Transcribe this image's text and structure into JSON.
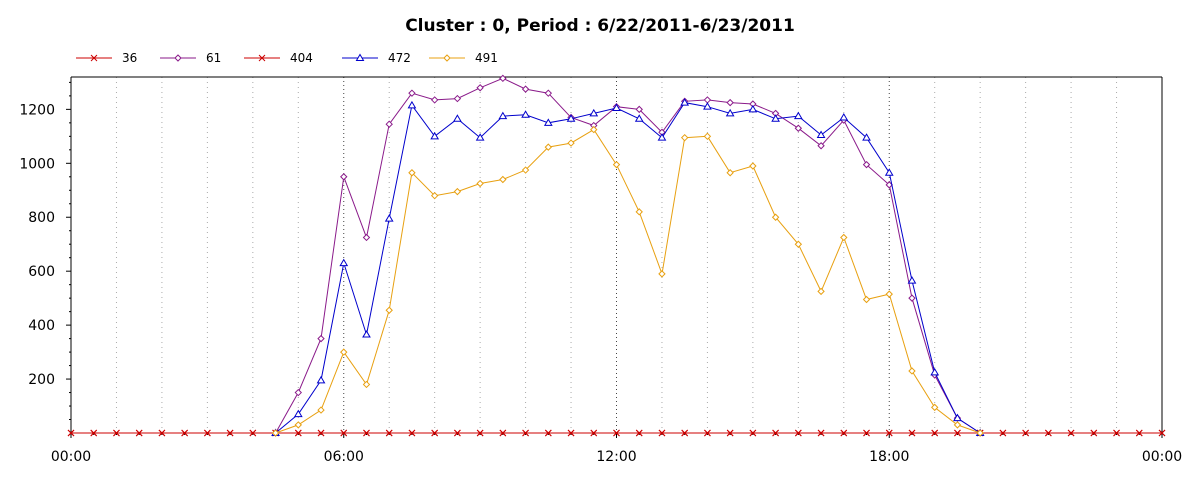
{
  "chart_data": {
    "type": "line",
    "title": "Cluster : 0, Period : 6/22/2011-6/23/2011",
    "xlabel": "",
    "ylabel": "",
    "x_ticks": [
      "00:00",
      "06:00",
      "12:00",
      "18:00",
      "00:00"
    ],
    "y_ticks": [
      200,
      400,
      600,
      800,
      1000,
      1200
    ],
    "xlim": [
      0,
      24
    ],
    "ylim": [
      0,
      1320
    ],
    "grid": {
      "vertical": true,
      "horizontal": false
    },
    "legend_position": "top-left",
    "series": [
      {
        "name": "36",
        "color": "#cc0000",
        "marker": "x",
        "x": [
          0,
          0.5,
          1,
          1.5,
          2,
          2.5,
          3,
          3.5,
          4,
          4.5,
          5,
          5.5,
          6,
          6.5,
          7,
          7.5,
          8,
          8.5,
          9,
          9.5,
          10,
          10.5,
          11,
          11.5,
          12,
          12.5,
          13,
          13.5,
          14,
          14.5,
          15,
          15.5,
          16,
          16.5,
          17,
          17.5,
          18,
          18.5,
          19,
          19.5,
          20,
          20.5,
          21,
          21.5,
          22,
          22.5,
          23,
          23.5,
          24
        ],
        "values": [
          0,
          0,
          0,
          0,
          0,
          0,
          0,
          0,
          0,
          0,
          0,
          0,
          0,
          0,
          0,
          0,
          0,
          0,
          0,
          0,
          0,
          0,
          0,
          0,
          0,
          0,
          0,
          0,
          0,
          0,
          0,
          0,
          0,
          0,
          0,
          0,
          0,
          0,
          0,
          0,
          0,
          0,
          0,
          0,
          0,
          0,
          0,
          0,
          0
        ]
      },
      {
        "name": "61",
        "color": "#8a1a8a",
        "marker": "diamond",
        "x": [
          4.5,
          5,
          5.5,
          6,
          6.5,
          7,
          7.5,
          8,
          8.5,
          9,
          9.5,
          10,
          10.5,
          11,
          11.5,
          12,
          12.5,
          13,
          13.5,
          14,
          14.5,
          15,
          15.5,
          16,
          16.5,
          17,
          17.5,
          18,
          18.5,
          19,
          19.5,
          20
        ],
        "values": [
          0,
          150,
          350,
          950,
          725,
          1145,
          1260,
          1235,
          1240,
          1280,
          1315,
          1275,
          1260,
          1170,
          1140,
          1210,
          1200,
          1115,
          1230,
          1235,
          1225,
          1220,
          1185,
          1130,
          1065,
          1160,
          995,
          920,
          500,
          215,
          55,
          0
        ]
      },
      {
        "name": "404",
        "color": "#cc0000",
        "marker": "x",
        "x": [
          0,
          0.5,
          1,
          1.5,
          2,
          2.5,
          3,
          3.5,
          4,
          4.5,
          5,
          5.5,
          6,
          6.5,
          7,
          7.5,
          8,
          8.5,
          9,
          9.5,
          10,
          10.5,
          11,
          11.5,
          12,
          12.5,
          13,
          13.5,
          14,
          14.5,
          15,
          15.5,
          16,
          16.5,
          17,
          17.5,
          18,
          18.5,
          19,
          19.5,
          20,
          20.5,
          21,
          21.5,
          22,
          22.5,
          23,
          23.5,
          24
        ],
        "values": [
          0,
          0,
          0,
          0,
          0,
          0,
          0,
          0,
          0,
          0,
          0,
          0,
          0,
          0,
          0,
          0,
          0,
          0,
          0,
          0,
          0,
          0,
          0,
          0,
          0,
          0,
          0,
          0,
          0,
          0,
          0,
          0,
          0,
          0,
          0,
          0,
          0,
          0,
          0,
          0,
          0,
          0,
          0,
          0,
          0,
          0,
          0,
          0,
          0
        ]
      },
      {
        "name": "472",
        "color": "#0000cc",
        "marker": "triangle",
        "x": [
          4.5,
          5,
          5.5,
          6,
          6.5,
          7,
          7.5,
          8,
          8.5,
          9,
          9.5,
          10,
          10.5,
          11,
          11.5,
          12,
          12.5,
          13,
          13.5,
          14,
          14.5,
          15,
          15.5,
          16,
          16.5,
          17,
          17.5,
          18,
          18.5,
          19,
          19.5,
          20
        ],
        "values": [
          0,
          70,
          195,
          630,
          365,
          795,
          1215,
          1100,
          1165,
          1095,
          1175,
          1180,
          1150,
          1165,
          1185,
          1205,
          1165,
          1095,
          1225,
          1210,
          1185,
          1200,
          1165,
          1175,
          1105,
          1170,
          1095,
          965,
          565,
          225,
          55,
          0
        ]
      },
      {
        "name": "491",
        "color": "#e8a010",
        "marker": "diamond",
        "x": [
          4.5,
          5,
          5.5,
          6,
          6.5,
          7,
          7.5,
          8,
          8.5,
          9,
          9.5,
          10,
          10.5,
          11,
          11.5,
          12,
          12.5,
          13,
          13.5,
          14,
          14.5,
          15,
          15.5,
          16,
          16.5,
          17,
          17.5,
          18,
          18.5,
          19,
          19.5,
          20
        ],
        "values": [
          0,
          30,
          85,
          300,
          180,
          455,
          965,
          880,
          895,
          925,
          940,
          975,
          1060,
          1075,
          1125,
          995,
          820,
          590,
          1095,
          1100,
          965,
          990,
          800,
          700,
          525,
          725,
          495,
          515,
          230,
          95,
          30,
          0
        ]
      }
    ]
  }
}
